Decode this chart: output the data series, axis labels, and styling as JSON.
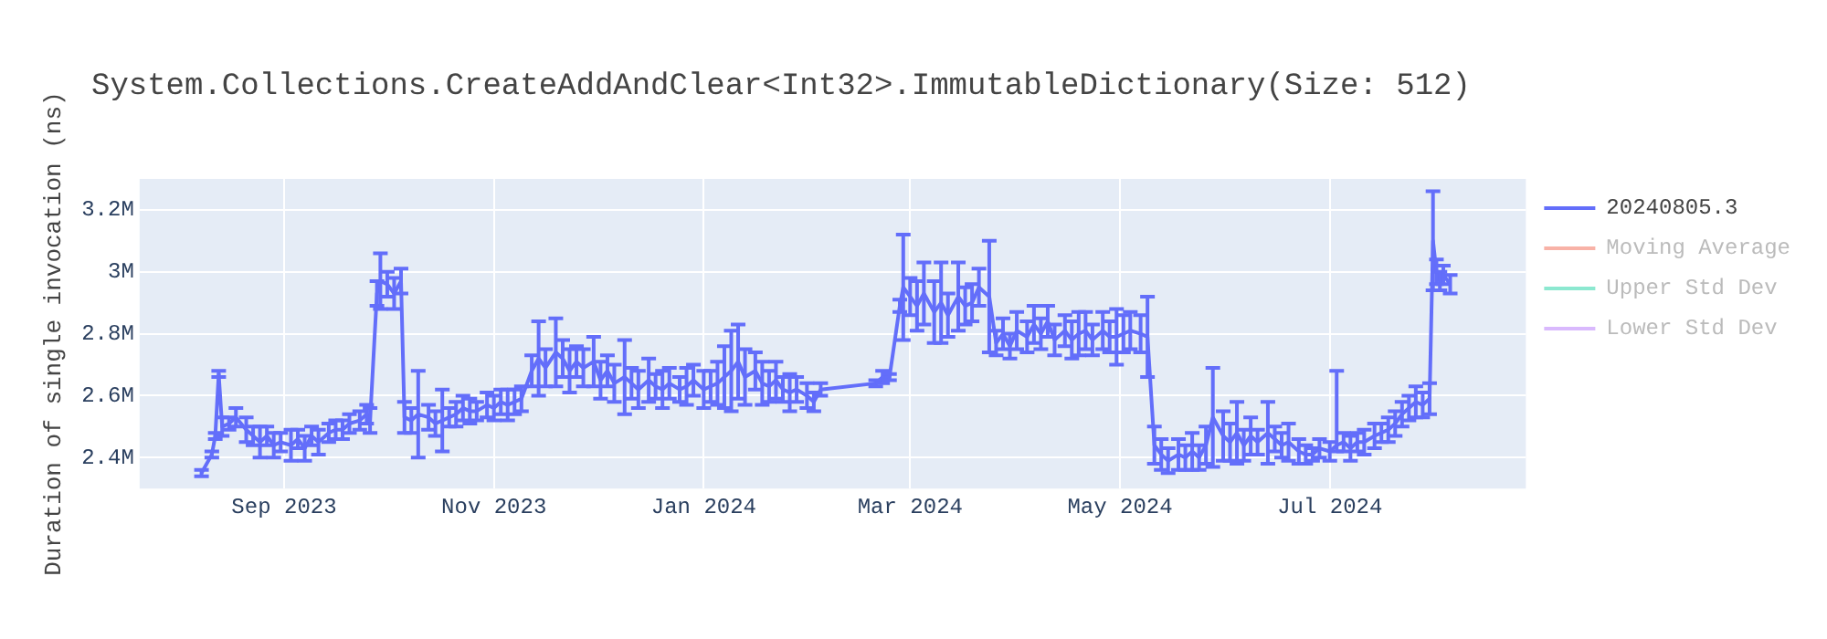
{
  "chart_data": {
    "type": "line",
    "title": "System.Collections.CreateAddAndClear<Int32>.ImmutableDictionary(Size: 512)",
    "ylabel": "Duration of single invocation (ns)",
    "x": [
      "2023-08-08",
      "2023-08-11",
      "2023-08-12",
      "2023-08-13",
      "2023-08-14",
      "2023-08-16",
      "2023-08-18",
      "2023-08-21",
      "2023-08-23",
      "2023-08-25",
      "2023-08-27",
      "2023-08-29",
      "2023-08-31",
      "2023-09-03",
      "2023-09-05",
      "2023-09-07",
      "2023-09-09",
      "2023-09-11",
      "2023-09-14",
      "2023-09-16",
      "2023-09-18",
      "2023-09-20",
      "2023-09-23",
      "2023-09-25",
      "2023-09-26",
      "2023-09-28",
      "2023-09-29",
      "2023-10-01",
      "2023-10-03",
      "2023-10-05",
      "2023-10-06",
      "2023-10-08",
      "2023-10-10",
      "2023-10-13",
      "2023-10-15",
      "2023-10-17",
      "2023-10-19",
      "2023-10-21",
      "2023-10-23",
      "2023-10-25",
      "2023-10-27",
      "2023-10-30",
      "2023-11-01",
      "2023-11-03",
      "2023-11-05",
      "2023-11-07",
      "2023-11-09",
      "2023-11-12",
      "2023-11-14",
      "2023-11-16",
      "2023-11-19",
      "2023-11-21",
      "2023-11-23",
      "2023-11-25",
      "2023-11-27",
      "2023-11-30",
      "2023-12-02",
      "2023-12-04",
      "2023-12-06",
      "2023-12-09",
      "2023-12-11",
      "2023-12-13",
      "2023-12-16",
      "2023-12-18",
      "2023-12-20",
      "2023-12-22",
      "2023-12-25",
      "2023-12-27",
      "2023-12-29",
      "2024-01-01",
      "2024-01-03",
      "2024-01-05",
      "2024-01-07",
      "2024-01-09",
      "2024-01-11",
      "2024-01-13",
      "2024-01-16",
      "2024-01-18",
      "2024-01-20",
      "2024-01-22",
      "2024-01-24",
      "2024-01-26",
      "2024-01-28",
      "2024-01-31",
      "2024-02-02",
      "2024-02-04",
      "2024-02-20",
      "2024-02-22",
      "2024-02-24",
      "2024-02-27",
      "2024-02-28",
      "2024-03-01",
      "2024-03-03",
      "2024-03-05",
      "2024-03-08",
      "2024-03-10",
      "2024-03-12",
      "2024-03-15",
      "2024-03-17",
      "2024-03-19",
      "2024-03-21",
      "2024-03-24",
      "2024-03-26",
      "2024-03-28",
      "2024-03-30",
      "2024-04-01",
      "2024-04-04",
      "2024-04-06",
      "2024-04-08",
      "2024-04-10",
      "2024-04-12",
      "2024-04-15",
      "2024-04-17",
      "2024-04-19",
      "2024-04-21",
      "2024-04-23",
      "2024-04-26",
      "2024-04-28",
      "2024-04-30",
      "2024-05-02",
      "2024-05-04",
      "2024-05-07",
      "2024-05-09",
      "2024-05-11",
      "2024-05-13",
      "2024-05-15",
      "2024-05-18",
      "2024-05-20",
      "2024-05-22",
      "2024-05-24",
      "2024-05-26",
      "2024-05-28",
      "2024-05-31",
      "2024-06-02",
      "2024-06-04",
      "2024-06-06",
      "2024-06-08",
      "2024-06-10",
      "2024-06-13",
      "2024-06-15",
      "2024-06-17",
      "2024-06-19",
      "2024-06-22",
      "2024-06-24",
      "2024-06-26",
      "2024-06-28",
      "2024-07-01",
      "2024-07-03",
      "2024-07-05",
      "2024-07-07",
      "2024-07-09",
      "2024-07-11",
      "2024-07-14",
      "2024-07-16",
      "2024-07-18",
      "2024-07-20",
      "2024-07-22",
      "2024-07-24",
      "2024-07-26",
      "2024-07-28",
      "2024-07-30",
      "2024-07-31",
      "2024-08-01",
      "2024-08-02",
      "2024-08-03",
      "2024-08-05"
    ],
    "series": [
      {
        "name": "20240805.3",
        "color": "#636efa",
        "values": [
          2350000,
          2410000,
          2470000,
          2670000,
          2500000,
          2510000,
          2530000,
          2490000,
          2470000,
          2450000,
          2470000,
          2440000,
          2450000,
          2440000,
          2460000,
          2430000,
          2470000,
          2450000,
          2480000,
          2490000,
          2490000,
          2510000,
          2520000,
          2540000,
          2520000,
          2930000,
          2970000,
          2960000,
          2930000,
          2970000,
          2530000,
          2520000,
          2540000,
          2530000,
          2510000,
          2520000,
          2530000,
          2540000,
          2560000,
          2550000,
          2550000,
          2570000,
          2560000,
          2580000,
          2570000,
          2580000,
          2590000,
          2680000,
          2720000,
          2690000,
          2740000,
          2720000,
          2680000,
          2710000,
          2690000,
          2710000,
          2650000,
          2680000,
          2640000,
          2660000,
          2640000,
          2620000,
          2650000,
          2630000,
          2620000,
          2640000,
          2620000,
          2630000,
          2650000,
          2620000,
          2630000,
          2640000,
          2660000,
          2680000,
          2710000,
          2660000,
          2680000,
          2640000,
          2630000,
          2650000,
          2620000,
          2610000,
          2620000,
          2600000,
          2580000,
          2620000,
          2640000,
          2660000,
          2660000,
          2890000,
          2950000,
          2920000,
          2890000,
          2930000,
          2870000,
          2900000,
          2860000,
          2920000,
          2890000,
          2900000,
          2950000,
          2920000,
          2770000,
          2800000,
          2760000,
          2810000,
          2790000,
          2830000,
          2800000,
          2840000,
          2780000,
          2810000,
          2780000,
          2800000,
          2810000,
          2780000,
          2810000,
          2790000,
          2790000,
          2800000,
          2810000,
          2800000,
          2790000,
          2440000,
          2410000,
          2390000,
          2410000,
          2400000,
          2420000,
          2400000,
          2440000,
          2530000,
          2470000,
          2450000,
          2480000,
          2440000,
          2470000,
          2450000,
          2480000,
          2460000,
          2440000,
          2450000,
          2420000,
          2410000,
          2410000,
          2430000,
          2420000,
          2440000,
          2450000,
          2430000,
          2450000,
          2450000,
          2470000,
          2480000,
          2490000,
          2510000,
          2540000,
          2560000,
          2580000,
          2570000,
          2590000,
          3100000,
          3000000,
          2970000,
          2990000,
          2960000
        ],
        "errors": [
          10000,
          10000,
          10000,
          10000,
          30000,
          20000,
          30000,
          40000,
          30000,
          50000,
          30000,
          40000,
          30000,
          50000,
          30000,
          40000,
          30000,
          40000,
          30000,
          30000,
          30000,
          30000,
          30000,
          30000,
          40000,
          40000,
          90000,
          40000,
          50000,
          40000,
          50000,
          40000,
          140000,
          40000,
          40000,
          100000,
          30000,
          40000,
          40000,
          40000,
          30000,
          40000,
          40000,
          40000,
          50000,
          40000,
          40000,
          50000,
          120000,
          60000,
          110000,
          60000,
          70000,
          50000,
          60000,
          80000,
          60000,
          50000,
          60000,
          120000,
          50000,
          60000,
          70000,
          40000,
          60000,
          50000,
          40000,
          60000,
          50000,
          60000,
          50000,
          70000,
          100000,
          130000,
          120000,
          90000,
          60000,
          70000,
          50000,
          60000,
          40000,
          60000,
          40000,
          40000,
          30000,
          20000,
          10000,
          20000,
          10000,
          20000,
          170000,
          60000,
          80000,
          100000,
          100000,
          130000,
          70000,
          110000,
          60000,
          60000,
          60000,
          180000,
          40000,
          50000,
          40000,
          60000,
          50000,
          60000,
          50000,
          50000,
          50000,
          50000,
          60000,
          70000,
          60000,
          50000,
          60000,
          50000,
          90000,
          60000,
          60000,
          60000,
          130000,
          60000,
          50000,
          40000,
          50000,
          40000,
          60000,
          40000,
          60000,
          160000,
          80000,
          60000,
          100000,
          50000,
          60000,
          40000,
          100000,
          40000,
          40000,
          60000,
          40000,
          30000,
          20000,
          30000,
          30000,
          [
            2420000,
            2680000
          ],
          30000,
          40000,
          30000,
          40000,
          40000,
          30000,
          40000,
          40000,
          40000,
          40000,
          50000,
          40000,
          50000,
          160000,
          40000,
          30000,
          30000,
          30000
        ]
      },
      {
        "name": "Moving Average",
        "color": "#ef553b",
        "values": [
          null,
          null,
          null,
          null,
          null,
          null,
          null,
          null,
          null,
          null,
          null,
          null,
          null,
          null,
          null,
          null,
          null,
          null,
          null,
          null,
          null,
          null,
          null,
          null,
          null,
          null,
          null,
          null,
          null,
          null,
          null,
          null,
          null,
          null,
          null,
          null,
          null,
          null,
          null,
          null,
          null,
          null,
          null,
          null,
          null,
          null,
          null,
          null,
          null,
          null,
          null,
          null,
          null,
          null,
          null,
          null,
          null,
          null,
          null,
          null,
          null,
          null,
          null,
          null,
          null,
          null,
          null,
          null,
          null,
          null,
          null,
          null,
          null,
          null,
          null,
          null,
          null,
          null,
          null,
          null,
          null,
          null,
          null,
          null,
          null,
          null,
          null,
          null,
          null,
          null,
          null,
          null,
          null,
          null,
          null,
          null,
          null,
          null,
          null,
          null,
          null,
          null,
          null,
          null,
          null,
          null,
          null,
          null,
          null,
          null,
          null,
          null,
          null,
          null,
          null,
          null,
          null,
          null,
          null,
          null,
          null,
          null,
          null,
          null,
          null,
          null,
          null,
          null,
          null,
          null,
          null,
          null,
          null,
          null,
          null,
          null,
          null,
          null,
          null,
          null,
          null,
          null,
          null,
          null,
          null,
          null,
          null,
          null,
          null,
          null,
          null,
          null,
          null,
          null,
          null,
          null,
          null,
          null,
          null,
          null,
          null,
          null,
          null,
          null,
          null,
          null
        ]
      },
      {
        "name": "Upper Std Dev",
        "color": "#00cc96",
        "values": [
          null,
          null,
          null,
          null,
          null,
          null,
          null,
          null,
          null,
          null,
          null,
          null,
          null,
          null,
          null,
          null,
          null,
          null,
          null,
          null,
          null,
          null,
          null,
          null,
          null,
          null,
          null,
          null,
          null,
          null,
          null,
          null,
          null,
          null,
          null,
          null,
          null,
          null,
          null,
          null,
          null,
          null,
          null,
          null,
          null,
          null,
          null,
          null,
          null,
          null,
          null,
          null,
          null,
          null,
          null,
          null,
          null,
          null,
          null,
          null,
          null,
          null,
          null,
          null,
          null,
          null,
          null,
          null,
          null,
          null,
          null,
          null,
          null,
          null,
          null,
          null,
          null,
          null,
          null,
          null,
          null,
          null,
          null,
          null,
          null,
          null,
          null,
          null,
          null,
          null,
          null,
          null,
          null,
          null,
          null,
          null,
          null,
          null,
          null,
          null,
          null,
          null,
          null,
          null,
          null,
          null,
          null,
          null,
          null,
          null,
          null,
          null,
          null,
          null,
          null,
          null,
          null,
          null,
          null,
          null,
          null,
          null,
          null,
          null,
          null,
          null,
          null,
          null,
          null,
          null,
          null,
          null,
          null,
          null,
          null,
          null,
          null,
          null,
          null,
          null,
          null,
          null,
          null,
          null,
          null,
          null,
          null,
          null,
          null,
          null,
          null,
          null,
          null,
          null,
          null,
          null,
          null,
          null,
          null,
          null,
          null,
          null,
          null,
          null,
          null,
          null
        ]
      },
      {
        "name": "Lower Std Dev",
        "color": "#ab63fa",
        "values": [
          null,
          null,
          null,
          null,
          null,
          null,
          null,
          null,
          null,
          null,
          null,
          null,
          null,
          null,
          null,
          null,
          null,
          null,
          null,
          null,
          null,
          null,
          null,
          null,
          null,
          null,
          null,
          null,
          null,
          null,
          null,
          null,
          null,
          null,
          null,
          null,
          null,
          null,
          null,
          null,
          null,
          null,
          null,
          null,
          null,
          null,
          null,
          null,
          null,
          null,
          null,
          null,
          null,
          null,
          null,
          null,
          null,
          null,
          null,
          null,
          null,
          null,
          null,
          null,
          null,
          null,
          null,
          null,
          null,
          null,
          null,
          null,
          null,
          null,
          null,
          null,
          null,
          null,
          null,
          null,
          null,
          null,
          null,
          null,
          null,
          null,
          null,
          null,
          null,
          null,
          null,
          null,
          null,
          null,
          null,
          null,
          null,
          null,
          null,
          null,
          null,
          null,
          null,
          null,
          null,
          null,
          null,
          null,
          null,
          null,
          null,
          null,
          null,
          null,
          null,
          null,
          null,
          null,
          null,
          null,
          null,
          null,
          null,
          null,
          null,
          null,
          null,
          null,
          null,
          null,
          null,
          null,
          null,
          null,
          null,
          null,
          null,
          null,
          null,
          null,
          null,
          null,
          null,
          null,
          null,
          null,
          null,
          null,
          null,
          null,
          null,
          null,
          null,
          null,
          null,
          null,
          null,
          null,
          null,
          null,
          null,
          null,
          null,
          null,
          null,
          null
        ]
      }
    ],
    "xlim": [
      "2023-07-21",
      "2024-08-27"
    ],
    "xticks": [
      {
        "value": "2023-09-01",
        "label": "Sep 2023"
      },
      {
        "value": "2023-11-01",
        "label": "Nov 2023"
      },
      {
        "value": "2024-01-01",
        "label": "Jan 2024"
      },
      {
        "value": "2024-03-01",
        "label": "Mar 2024"
      },
      {
        "value": "2024-05-01",
        "label": "May 2024"
      },
      {
        "value": "2024-07-01",
        "label": "Jul 2024"
      }
    ],
    "ylim": [
      2300000,
      3300000
    ],
    "yticks": [
      {
        "value": 2400000,
        "label": "2.4M"
      },
      {
        "value": 2600000,
        "label": "2.6M"
      },
      {
        "value": 2800000,
        "label": "2.8M"
      },
      {
        "value": 3000000,
        "label": "3M"
      },
      {
        "value": 3200000,
        "label": "3.2M"
      }
    ],
    "grid": true,
    "legend": "top right",
    "marker": "none",
    "line_style": "solid"
  }
}
